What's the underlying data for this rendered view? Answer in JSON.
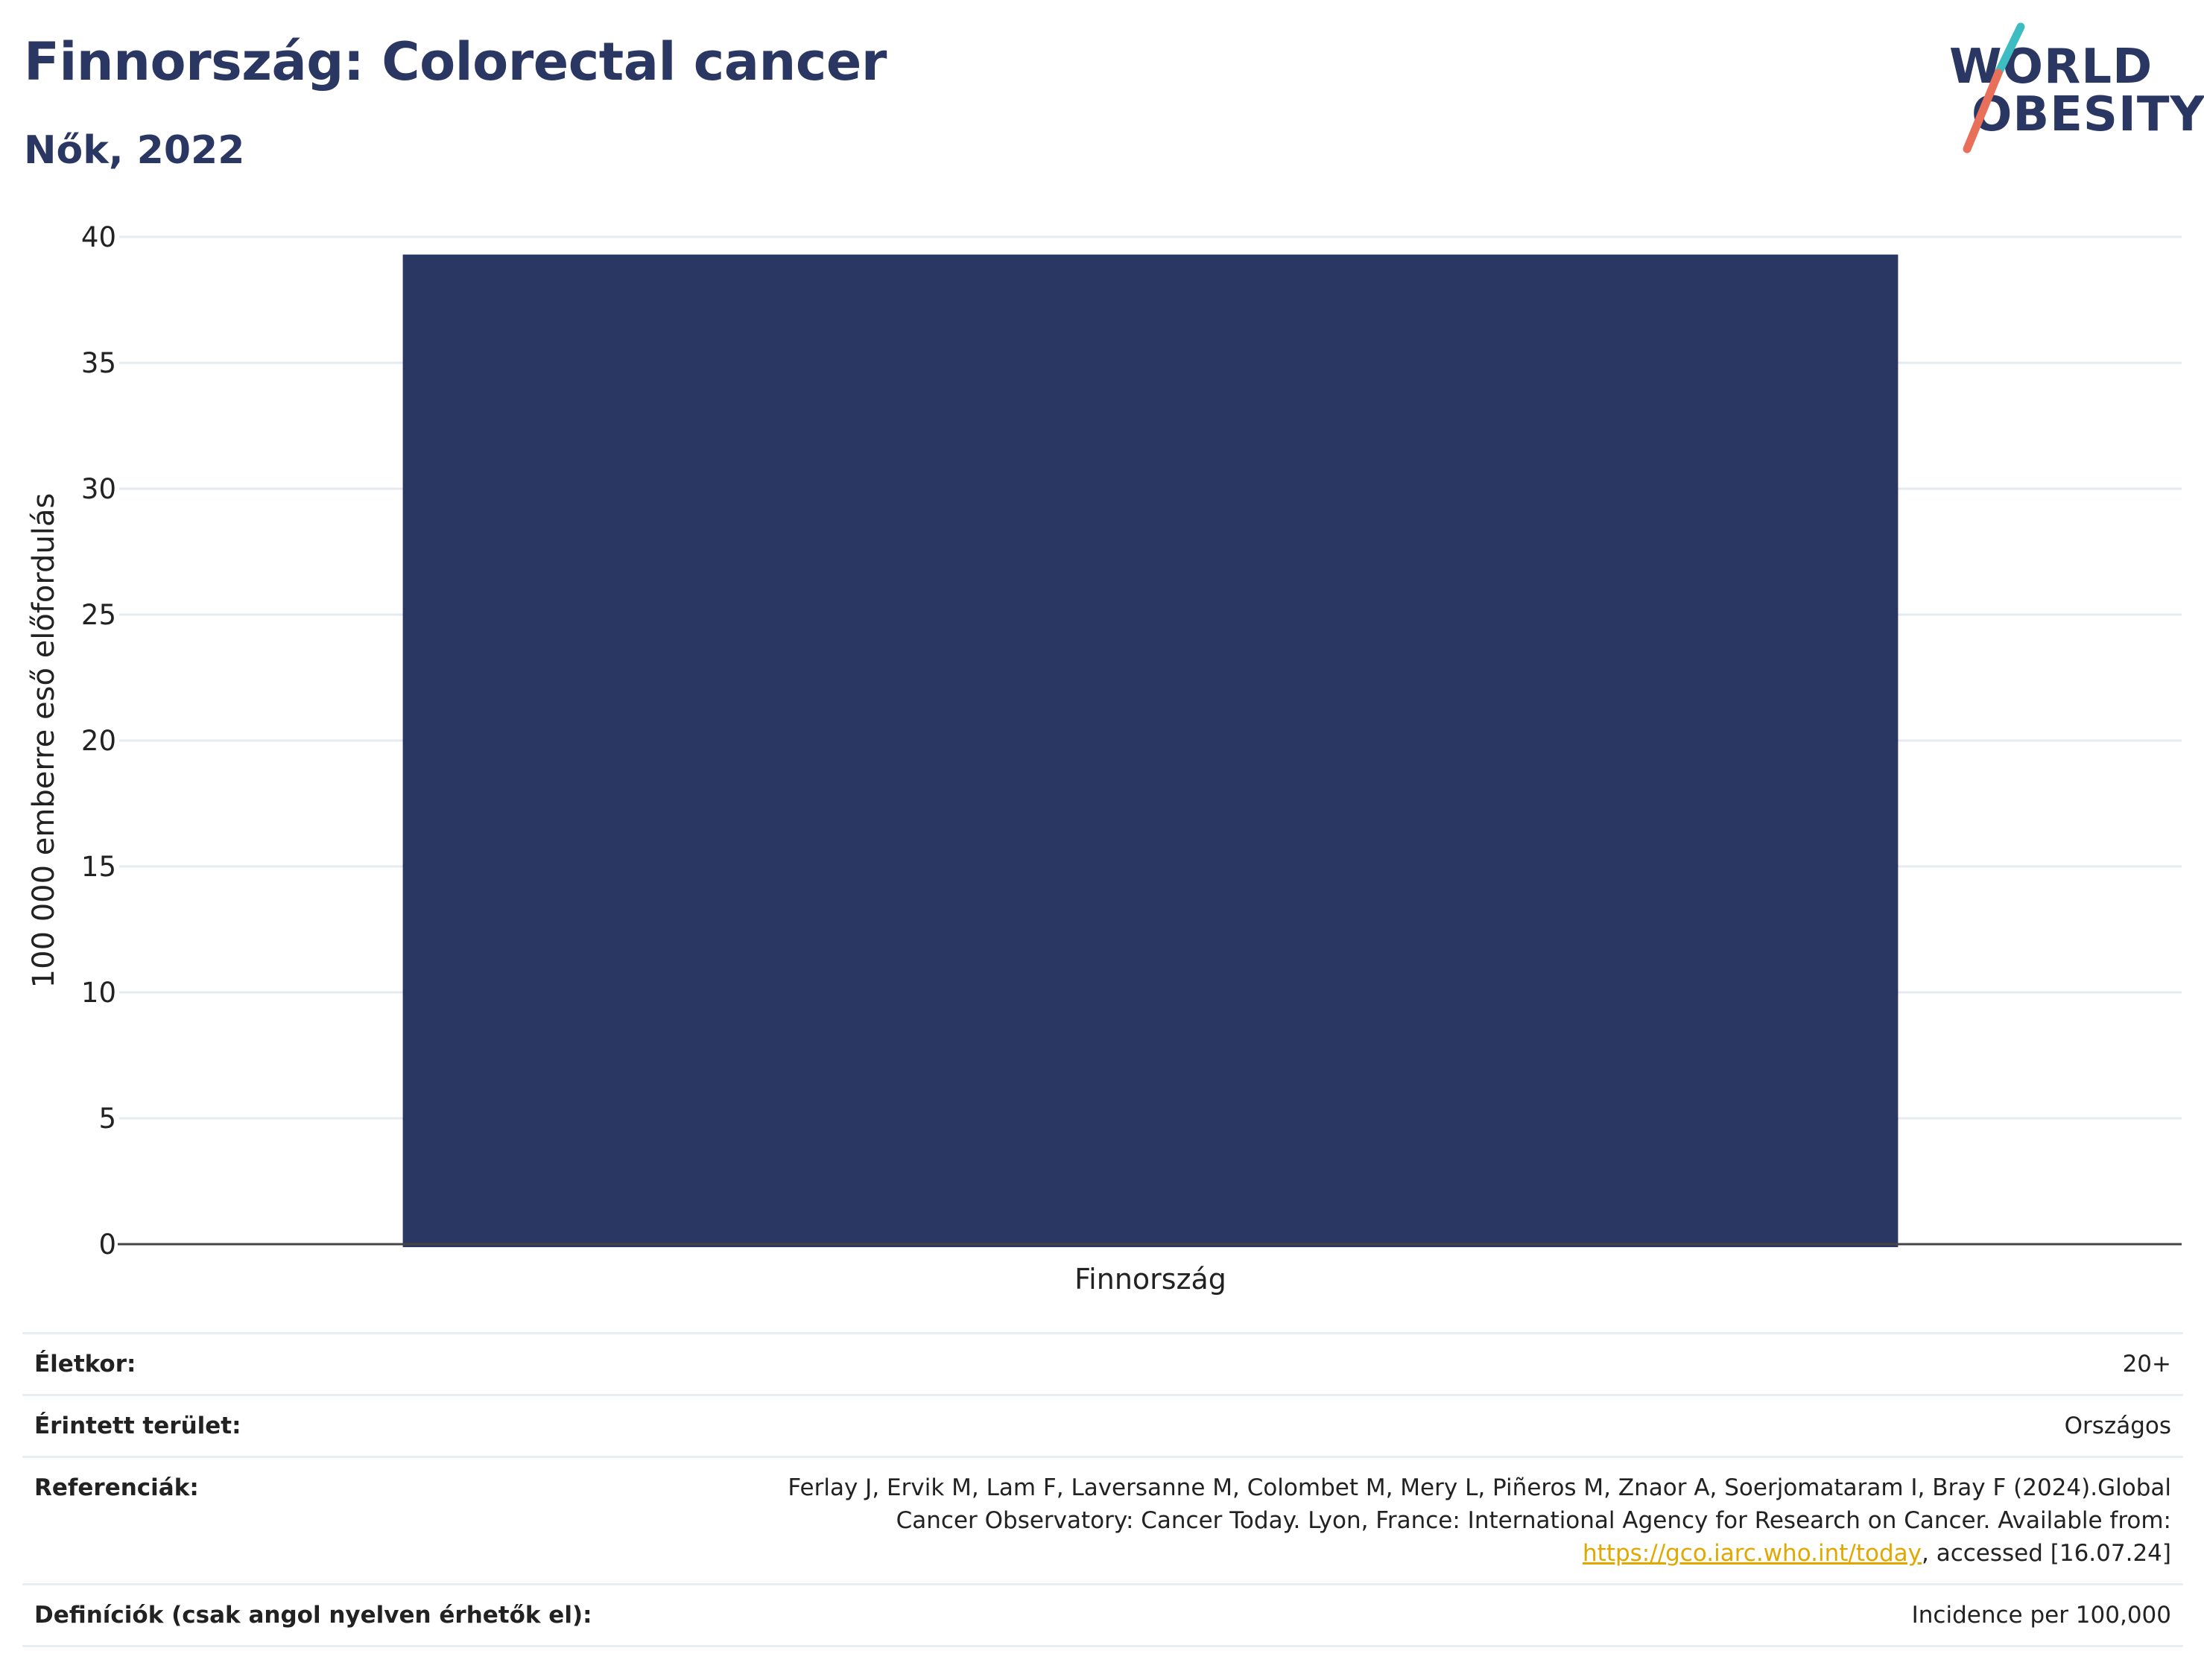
{
  "header": {
    "title": "Finnország: Colorectal cancer",
    "subtitle": "Nők, 2022"
  },
  "logo": {
    "line1": "WORLD",
    "line2": "OBESITY",
    "accent_teal": "#3dbdc2",
    "accent_coral": "#e8705a"
  },
  "colors": {
    "bar": "#2b3763",
    "title": "#2b3763",
    "grid": "#e6ebf1",
    "axis": "#444444"
  },
  "chart_data": {
    "type": "bar",
    "categories": [
      "Finnország"
    ],
    "values": [
      39.3
    ],
    "ylabel": "100 000 emberre eső előfordulás",
    "ylim": [
      0,
      40
    ],
    "yticks": [
      0,
      5,
      10,
      15,
      20,
      25,
      30,
      35,
      40
    ],
    "grid": true,
    "legend": "none"
  },
  "info_table": {
    "rows": [
      {
        "label": "Életkor:",
        "value": "20+"
      },
      {
        "label": "Érintett terület:",
        "value": "Országos"
      }
    ],
    "references": {
      "label": "Referenciák:",
      "text_before": "Ferlay J, Ervik M, Lam F, Laversanne M, Colombet M, Mery L, Piñeros M, Znaor A, Soerjomataram I, Bray F (2024).Global Cancer Observatory: Cancer Today. Lyon, France: International Agency for Research on Cancer. Available from: ",
      "link": "https://gco.iarc.who.int/today",
      "text_after": ", accessed [16.07.24]"
    },
    "definitions": {
      "label": "Definíciók (csak angol nyelven érhetők el):",
      "value": "Incidence per 100,000"
    }
  }
}
